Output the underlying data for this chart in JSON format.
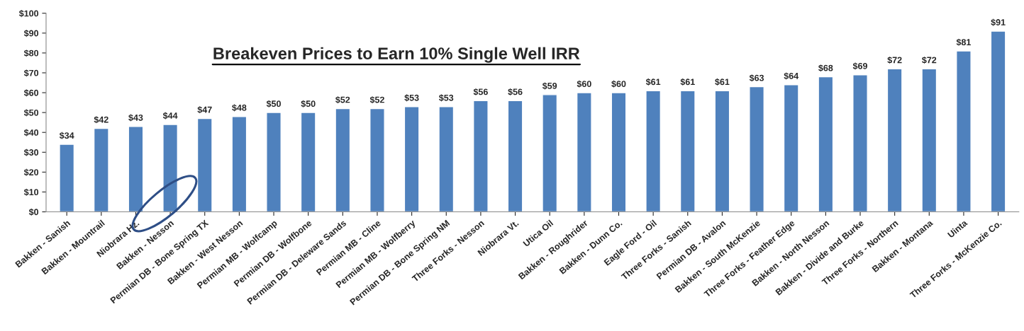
{
  "chart_data": {
    "type": "bar",
    "title": "Breakeven Prices to Earn 10% Single Well IRR",
    "categories": [
      "Bakken - Sanish",
      "Bakken - Mountrail",
      "Niobrara Hz.",
      "Bakken - Nesson",
      "Permian DB - Bone Spring TX",
      "Bakken - West Nesson",
      "Permian MB - Wolfcamp",
      "Permian DB - Wolfbone",
      "Permian DB - Deleware Sands",
      "Permian MB - Cline",
      "Permian MB - Wolfberry",
      "Permian DB - Bone Spring NM",
      "Three Forks - Nesson",
      "Niobrara Vt.",
      "Utica Oil",
      "Bakken - Roughrider",
      "Bakken - Dunn Co.",
      "Eagle Ford - Oil",
      "Three Forks - Sanish",
      "Permian DB - Avalon",
      "Bakken - South McKenzie",
      "Three Forks - Feather Edge",
      "Bakken - North Nesson",
      "Bakken - Divide and Burke",
      "Three Forks - Northern",
      "Bakken - Montana",
      "Uinta",
      "Three Forks - McKenzie Co."
    ],
    "values": [
      34,
      42,
      43,
      44,
      47,
      48,
      50,
      50,
      52,
      52,
      53,
      53,
      56,
      56,
      59,
      60,
      60,
      61,
      61,
      61,
      63,
      64,
      68,
      69,
      72,
      72,
      81,
      91
    ],
    "value_labels": [
      "$34",
      "$42",
      "$43",
      "$44",
      "$47",
      "$48",
      "$50",
      "$50",
      "$52",
      "$52",
      "$53",
      "$53",
      "$56",
      "$56",
      "$59",
      "$60",
      "$60",
      "$61",
      "$61",
      "$61",
      "$63",
      "$64",
      "$68",
      "$69",
      "$72",
      "$72",
      "$81",
      "$91"
    ],
    "color": "#4f81bd",
    "ylim": [
      0,
      100
    ],
    "yticks": [
      {
        "value": 0,
        "label": "$0"
      },
      {
        "value": 10,
        "label": "$10"
      },
      {
        "value": 20,
        "label": "$20"
      },
      {
        "value": 30,
        "label": "$30"
      },
      {
        "value": 40,
        "label": "$40"
      },
      {
        "value": 50,
        "label": "$50"
      },
      {
        "value": 60,
        "label": "$60"
      },
      {
        "value": 70,
        "label": "$70"
      },
      {
        "value": 80,
        "label": "$80"
      },
      {
        "value": 90,
        "label": "$90"
      },
      {
        "value": 100,
        "label": "$100"
      }
    ],
    "grid": false
  }
}
